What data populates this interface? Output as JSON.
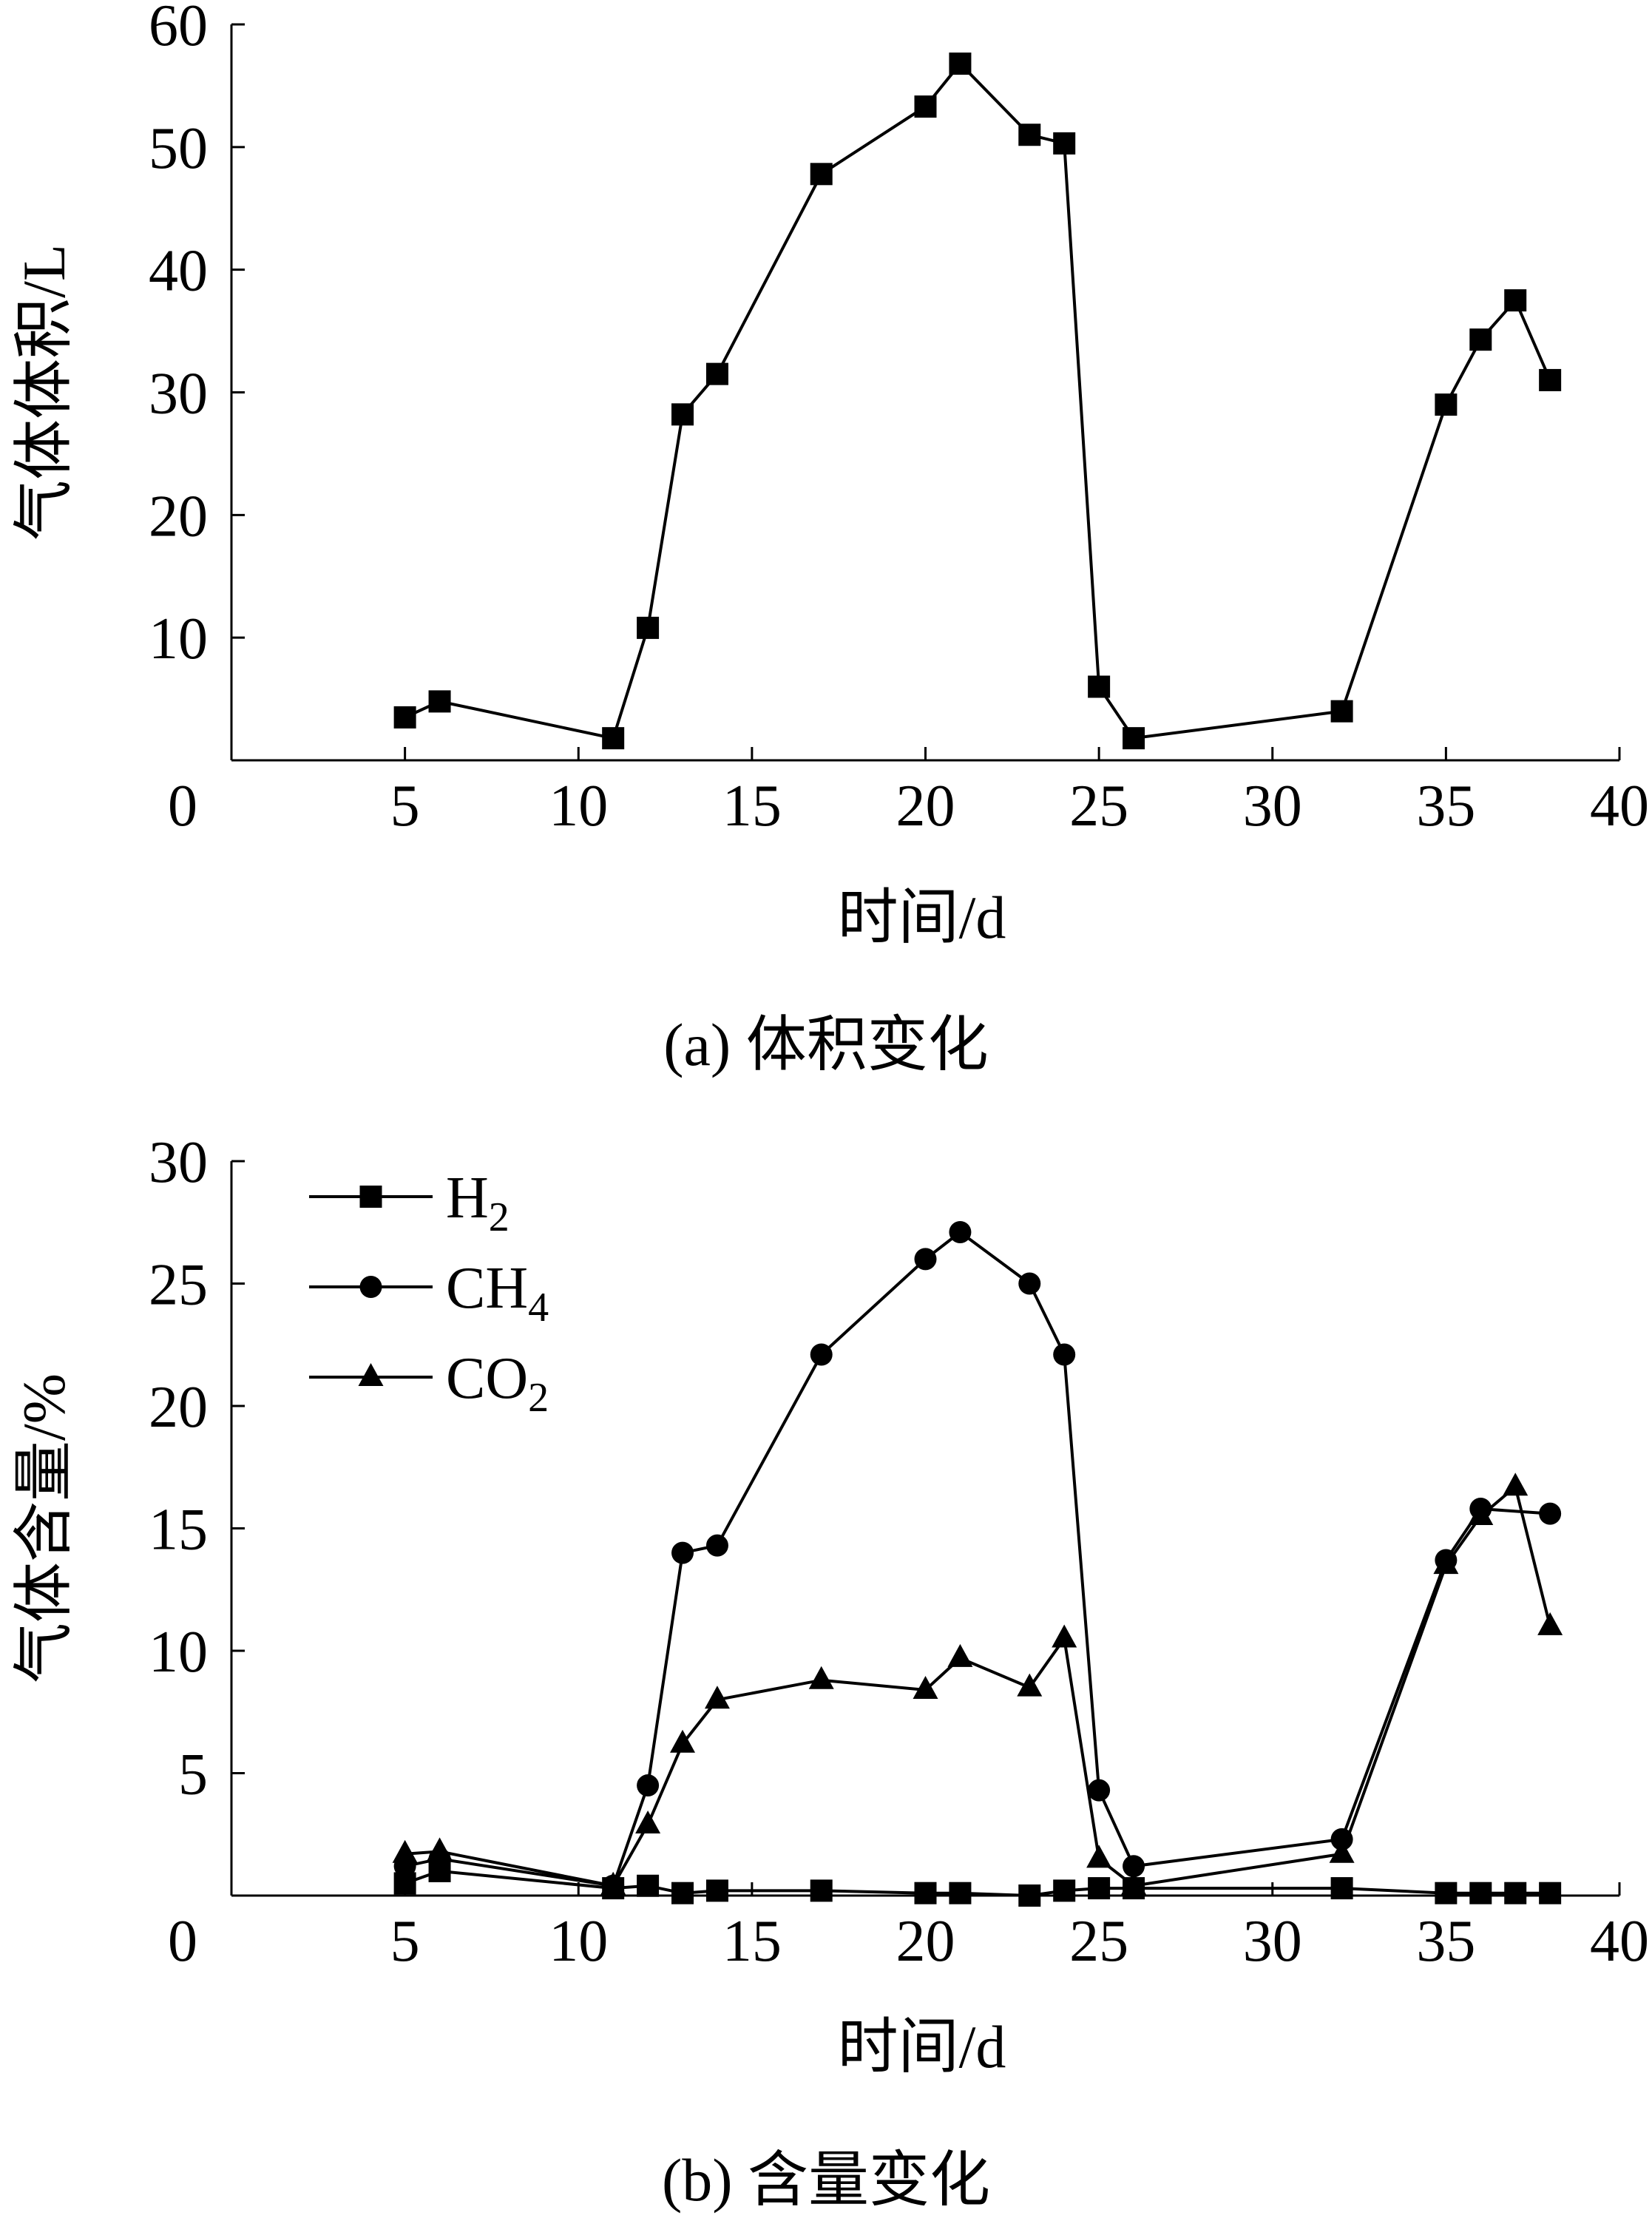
{
  "chart_data": [
    {
      "id": "volume",
      "type": "line",
      "caption": "(a)  体积变化",
      "xlabel": "时间/d",
      "ylabel": "气体体积/L",
      "xlim": [
        0,
        40
      ],
      "ylim": [
        0,
        60
      ],
      "xticks": [
        0,
        5,
        10,
        15,
        20,
        25,
        30,
        35,
        40
      ],
      "yticks": [
        10,
        20,
        30,
        40,
        50,
        60
      ],
      "y_zero_label_at_x_axis": "0",
      "grid": false,
      "series": [
        {
          "marker": "square",
          "color": "#000000",
          "x": [
            5,
            6,
            11,
            12,
            13,
            14,
            17,
            20,
            21,
            23,
            24,
            25,
            26,
            32,
            35,
            36,
            37,
            38
          ],
          "y": [
            3.5,
            4.8,
            1.8,
            10.8,
            28.2,
            31.5,
            47.8,
            53.3,
            56.8,
            51,
            50.3,
            6,
            1.8,
            4,
            29,
            34.3,
            37.5,
            31
          ]
        }
      ]
    },
    {
      "id": "content",
      "type": "line",
      "caption": "(b)  含量变化",
      "xlabel": "时间/d",
      "ylabel": "气体含量/%",
      "xlim": [
        0,
        40
      ],
      "ylim": [
        0,
        30
      ],
      "xticks": [
        0,
        5,
        10,
        15,
        20,
        25,
        30,
        35,
        40
      ],
      "yticks": [
        5,
        10,
        15,
        20,
        25,
        30
      ],
      "y_zero_label_at_x_axis": "0",
      "grid": false,
      "legend_position": "top-left",
      "series": [
        {
          "name": "H2",
          "label_main": "H",
          "label_sub": "2",
          "marker": "square",
          "color": "#000000",
          "x": [
            5,
            6,
            11,
            12,
            13,
            14,
            17,
            20,
            21,
            23,
            24,
            25,
            26,
            32,
            35,
            36,
            37,
            38
          ],
          "y": [
            0.5,
            1,
            0.3,
            0.4,
            0.1,
            0.2,
            0.2,
            0.1,
            0.1,
            0.0,
            0.2,
            0.3,
            0.3,
            0.3,
            0.1,
            0.1,
            0.1,
            0.1
          ]
        },
        {
          "name": "CH4",
          "label_main": "CH",
          "label_sub": "4",
          "marker": "circle",
          "color": "#000000",
          "x": [
            5,
            6,
            11,
            12,
            13,
            14,
            17,
            20,
            21,
            23,
            24,
            25,
            26,
            32,
            35,
            36,
            38
          ],
          "y": [
            1.2,
            1.5,
            0.4,
            4.5,
            14,
            14.3,
            22.1,
            26,
            27.1,
            25,
            22.1,
            4.3,
            1.2,
            2.3,
            13.7,
            15.8,
            15.6
          ]
        },
        {
          "name": "CO2",
          "label_main": "CO",
          "label_sub": "2",
          "marker": "triangle",
          "color": "#000000",
          "x": [
            5,
            6,
            11,
            12,
            13,
            14,
            17,
            20,
            21,
            23,
            24,
            25,
            26,
            32,
            35,
            36,
            37,
            38
          ],
          "y": [
            1.7,
            1.8,
            0.4,
            2.9,
            6.2,
            8,
            8.8,
            8.4,
            9.7,
            8.5,
            10.5,
            1.5,
            0.4,
            1.7,
            13.5,
            15.5,
            16.7,
            11
          ]
        }
      ]
    }
  ]
}
